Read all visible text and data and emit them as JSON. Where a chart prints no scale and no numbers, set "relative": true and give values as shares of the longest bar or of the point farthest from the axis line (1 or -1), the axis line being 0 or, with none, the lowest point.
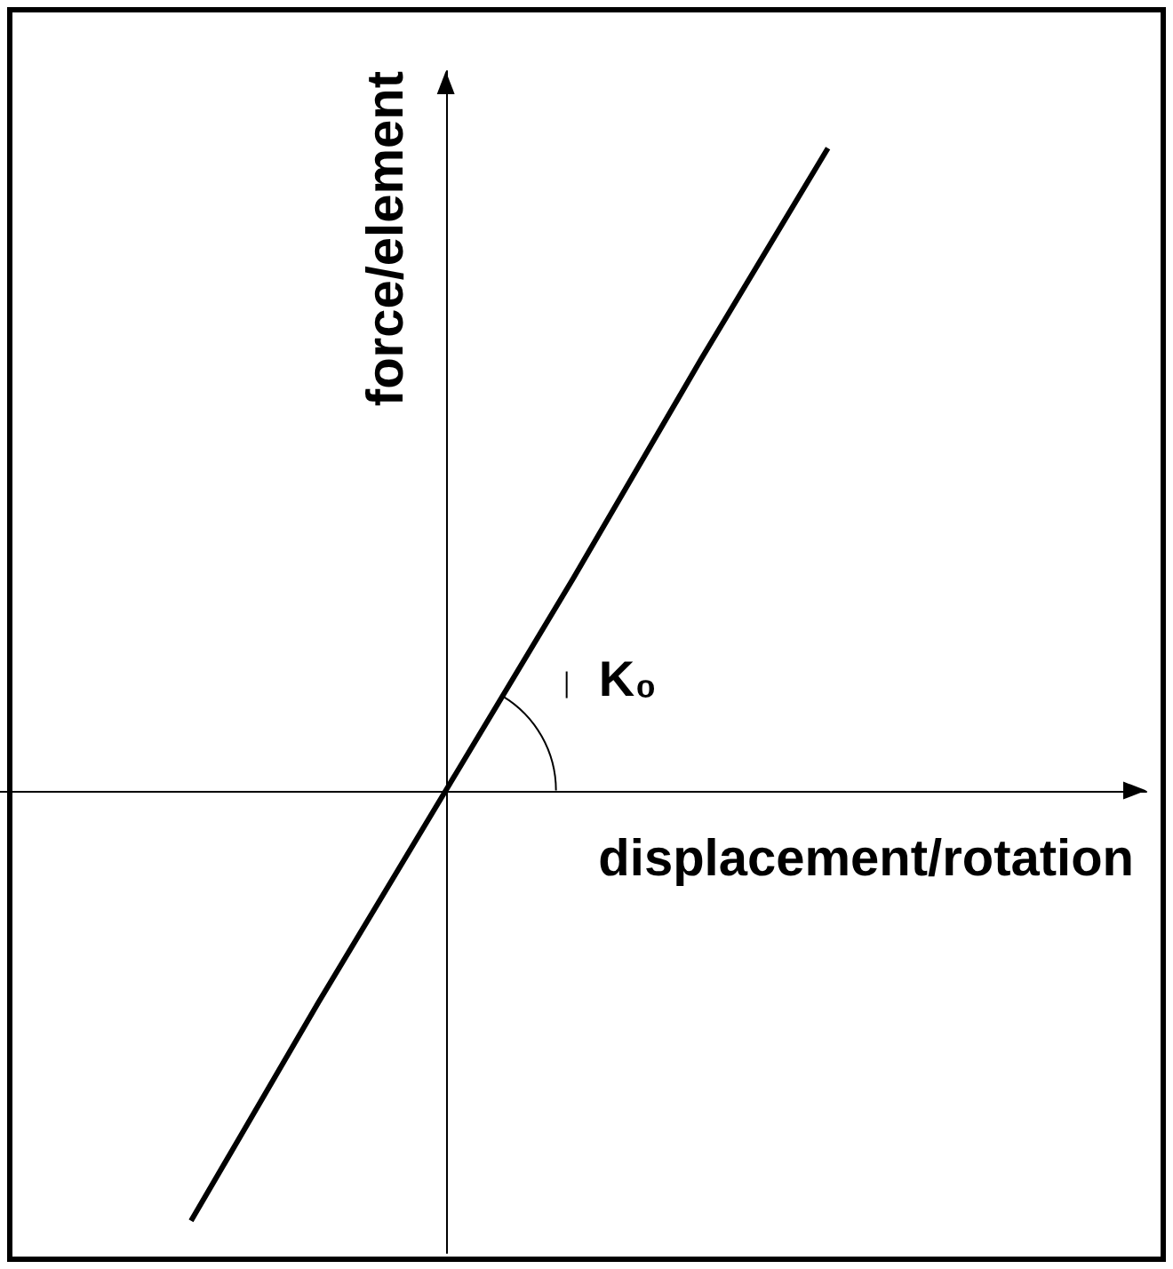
{
  "chart_data": {
    "type": "line",
    "relative": true,
    "xlabel": "displacement/rotation",
    "ylabel": "force/element",
    "annotations": [
      "K₀"
    ],
    "categories": [
      null,
      null,
      null,
      null,
      null,
      null,
      null,
      null,
      null
    ],
    "series": [
      {
        "color": "#000000",
        "values": [
          null,
          -0.67,
          -0.33,
          0,
          0.33,
          0.67,
          1,
          null,
          null
        ]
      }
    ],
    "grid": false,
    "marker": "none",
    "line_style": "solid"
  }
}
